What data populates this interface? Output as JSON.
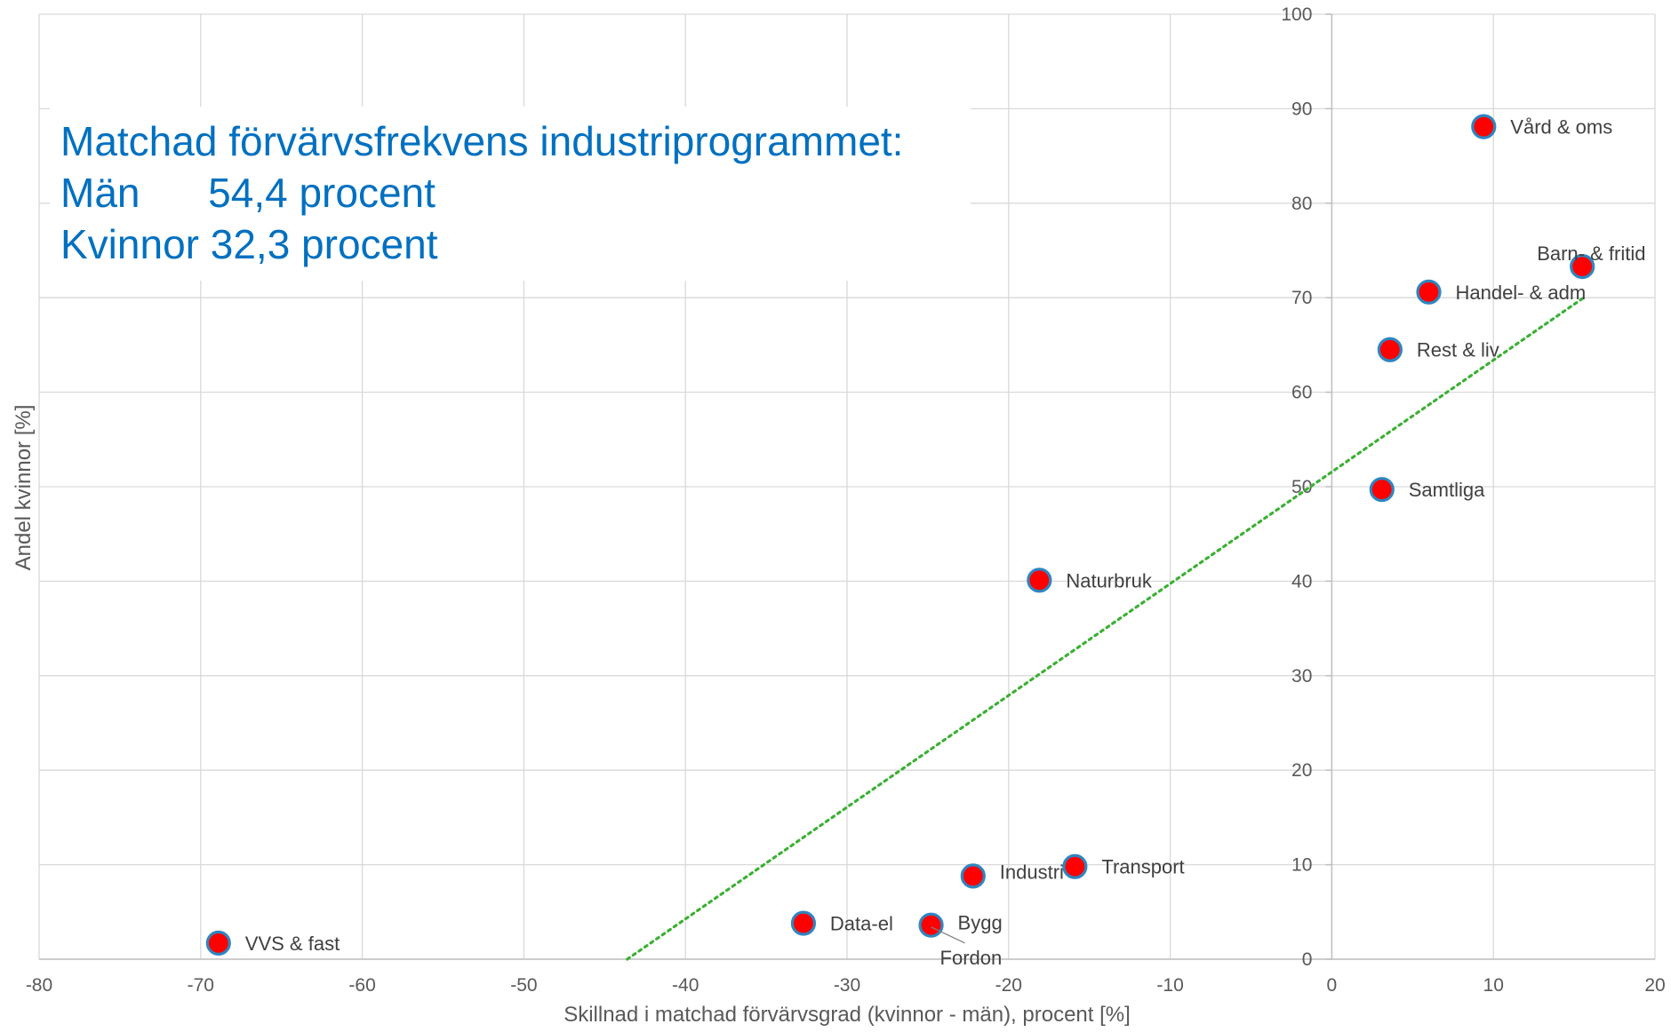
{
  "chart_data": {
    "type": "scatter",
    "xlabel": "Skillnad i matchad förvärvsgrad (kvinnor - män), procent [%]",
    "ylabel": "Andel kvinnor [%]",
    "xlim": [
      -80,
      20
    ],
    "ylim": [
      0,
      100
    ],
    "x_ticks": [
      "-80",
      "-70",
      "-60",
      "-50",
      "-40",
      "-30",
      "-20",
      "-10",
      "0",
      "10",
      "20"
    ],
    "y_ticks": [
      "0",
      "10",
      "20",
      "30",
      "40",
      "50",
      "60",
      "70",
      "80",
      "90",
      "100"
    ],
    "grid": true,
    "points": [
      {
        "label": "Vård & oms",
        "x": 9.4,
        "y": 88.1
      },
      {
        "label": "Barn- & fritid",
        "x": 15.5,
        "y": 73.3
      },
      {
        "label": "Handel- & adm",
        "x": 6.0,
        "y": 70.6
      },
      {
        "label": "Rest & liv",
        "x": 3.6,
        "y": 64.5
      },
      {
        "label": "Samtliga",
        "x": 3.1,
        "y": 49.7
      },
      {
        "label": "Naturbruk",
        "x": -18.1,
        "y": 40.1
      },
      {
        "label": "Transport",
        "x": -15.9,
        "y": 9.8
      },
      {
        "label": "Industri",
        "x": -22.2,
        "y": 8.8
      },
      {
        "label": "Data-el",
        "x": -32.7,
        "y": 3.8
      },
      {
        "label": "Bygg",
        "x": -24.8,
        "y": 3.6
      },
      {
        "label": "Fordon",
        "x": -24.8,
        "y": 3.4
      },
      {
        "label": "VVS & fast",
        "x": -68.9,
        "y": 1.7
      }
    ],
    "trendline": {
      "style": "dotted",
      "color": "#3cb034",
      "x": [
        -43.6,
        15.5
      ],
      "y": [
        0,
        69.9
      ]
    },
    "marker_fill": "#ff0000",
    "marker_edge": "#2e86c1",
    "annotation": {
      "color": "#0070c0",
      "lines": [
        "Matchad förvärvsfrekvens industriprogrammet:",
        "Män      54,4 procent",
        "Kvinnor 32,3 procent"
      ]
    }
  }
}
